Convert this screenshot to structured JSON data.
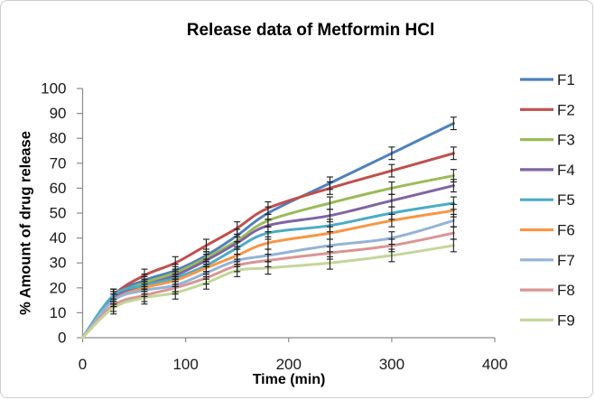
{
  "figure": {
    "title": "Release data of Metformin HCl",
    "x_axis_title": "Time (min)",
    "y_axis_title": "% Amount of drug release"
  },
  "chart_data": {
    "type": "line",
    "title": "Release data of Metformin HCl",
    "xlabel": "Time (min)",
    "ylabel": "% Amount of drug release",
    "x": [
      0,
      30,
      60,
      90,
      120,
      150,
      180,
      240,
      300,
      360
    ],
    "xlim": [
      0,
      400
    ],
    "ylim": [
      0,
      100
    ],
    "xticks": [
      0,
      100,
      200,
      300,
      400
    ],
    "yticks": [
      0,
      10,
      20,
      30,
      40,
      50,
      60,
      70,
      80,
      90,
      100
    ],
    "grid": false,
    "legend_position": "right",
    "error_bar": 2.5,
    "series": [
      {
        "name": "F1",
        "color": "#4F81BD",
        "values": [
          0,
          17,
          23,
          27,
          33,
          41,
          50,
          62,
          74,
          86
        ]
      },
      {
        "name": "F2",
        "color": "#C0504D",
        "values": [
          0,
          17,
          25,
          30,
          37,
          44,
          52,
          60,
          67,
          74
        ]
      },
      {
        "name": "F3",
        "color": "#9BBB59",
        "values": [
          0,
          16,
          22,
          26,
          32,
          39,
          47,
          54,
          60,
          65
        ]
      },
      {
        "name": "F4",
        "color": "#8064A2",
        "values": [
          0,
          16,
          21,
          25,
          31,
          38,
          45,
          49,
          55,
          61
        ]
      },
      {
        "name": "F5",
        "color": "#4BACC6",
        "values": [
          0,
          17,
          21,
          24,
          29,
          36,
          42,
          45,
          50,
          54
        ]
      },
      {
        "name": "F6",
        "color": "#F79646",
        "values": [
          0,
          15,
          20,
          23,
          28,
          33,
          38,
          42,
          47,
          51
        ]
      },
      {
        "name": "F7",
        "color": "#95B3D7",
        "values": [
          0,
          15,
          19,
          21,
          26,
          31,
          33,
          37,
          40,
          47
        ]
      },
      {
        "name": "F8",
        "color": "#D99694",
        "values": [
          0,
          13,
          17,
          20,
          24,
          29,
          31,
          34,
          37,
          42
        ]
      },
      {
        "name": "F9",
        "color": "#C3D69B",
        "values": [
          0,
          12,
          16,
          18,
          22,
          27,
          28,
          30,
          33,
          37
        ]
      }
    ]
  }
}
